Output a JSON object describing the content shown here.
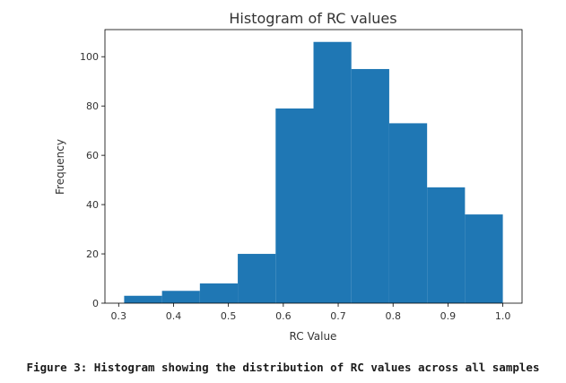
{
  "chart_data": {
    "type": "bar",
    "title": "Histogram of RC values",
    "xlabel": "RC Value",
    "ylabel": "Frequency",
    "bins": [
      {
        "x0": 0.31,
        "x1": 0.379,
        "count": 3
      },
      {
        "x0": 0.379,
        "x1": 0.448,
        "count": 5
      },
      {
        "x0": 0.448,
        "x1": 0.517,
        "count": 8
      },
      {
        "x0": 0.517,
        "x1": 0.586,
        "count": 20
      },
      {
        "x0": 0.586,
        "x1": 0.655,
        "count": 79
      },
      {
        "x0": 0.655,
        "x1": 0.724,
        "count": 106
      },
      {
        "x0": 0.724,
        "x1": 0.793,
        "count": 95
      },
      {
        "x0": 0.793,
        "x1": 0.862,
        "count": 73
      },
      {
        "x0": 0.862,
        "x1": 0.931,
        "count": 47
      },
      {
        "x0": 0.931,
        "x1": 1.0,
        "count": 36
      }
    ],
    "xlim": [
      0.275,
      1.035
    ],
    "ylim": [
      0,
      111
    ],
    "xticks": [
      "0.3",
      "0.4",
      "0.5",
      "0.6",
      "0.7",
      "0.8",
      "0.9",
      "1.0"
    ],
    "yticks": [
      "0",
      "20",
      "40",
      "60",
      "80",
      "100"
    ],
    "bar_color": "#1f77b4",
    "grid": false
  },
  "caption": "Figure 3: Histogram showing the distribution of RC values across all samples"
}
